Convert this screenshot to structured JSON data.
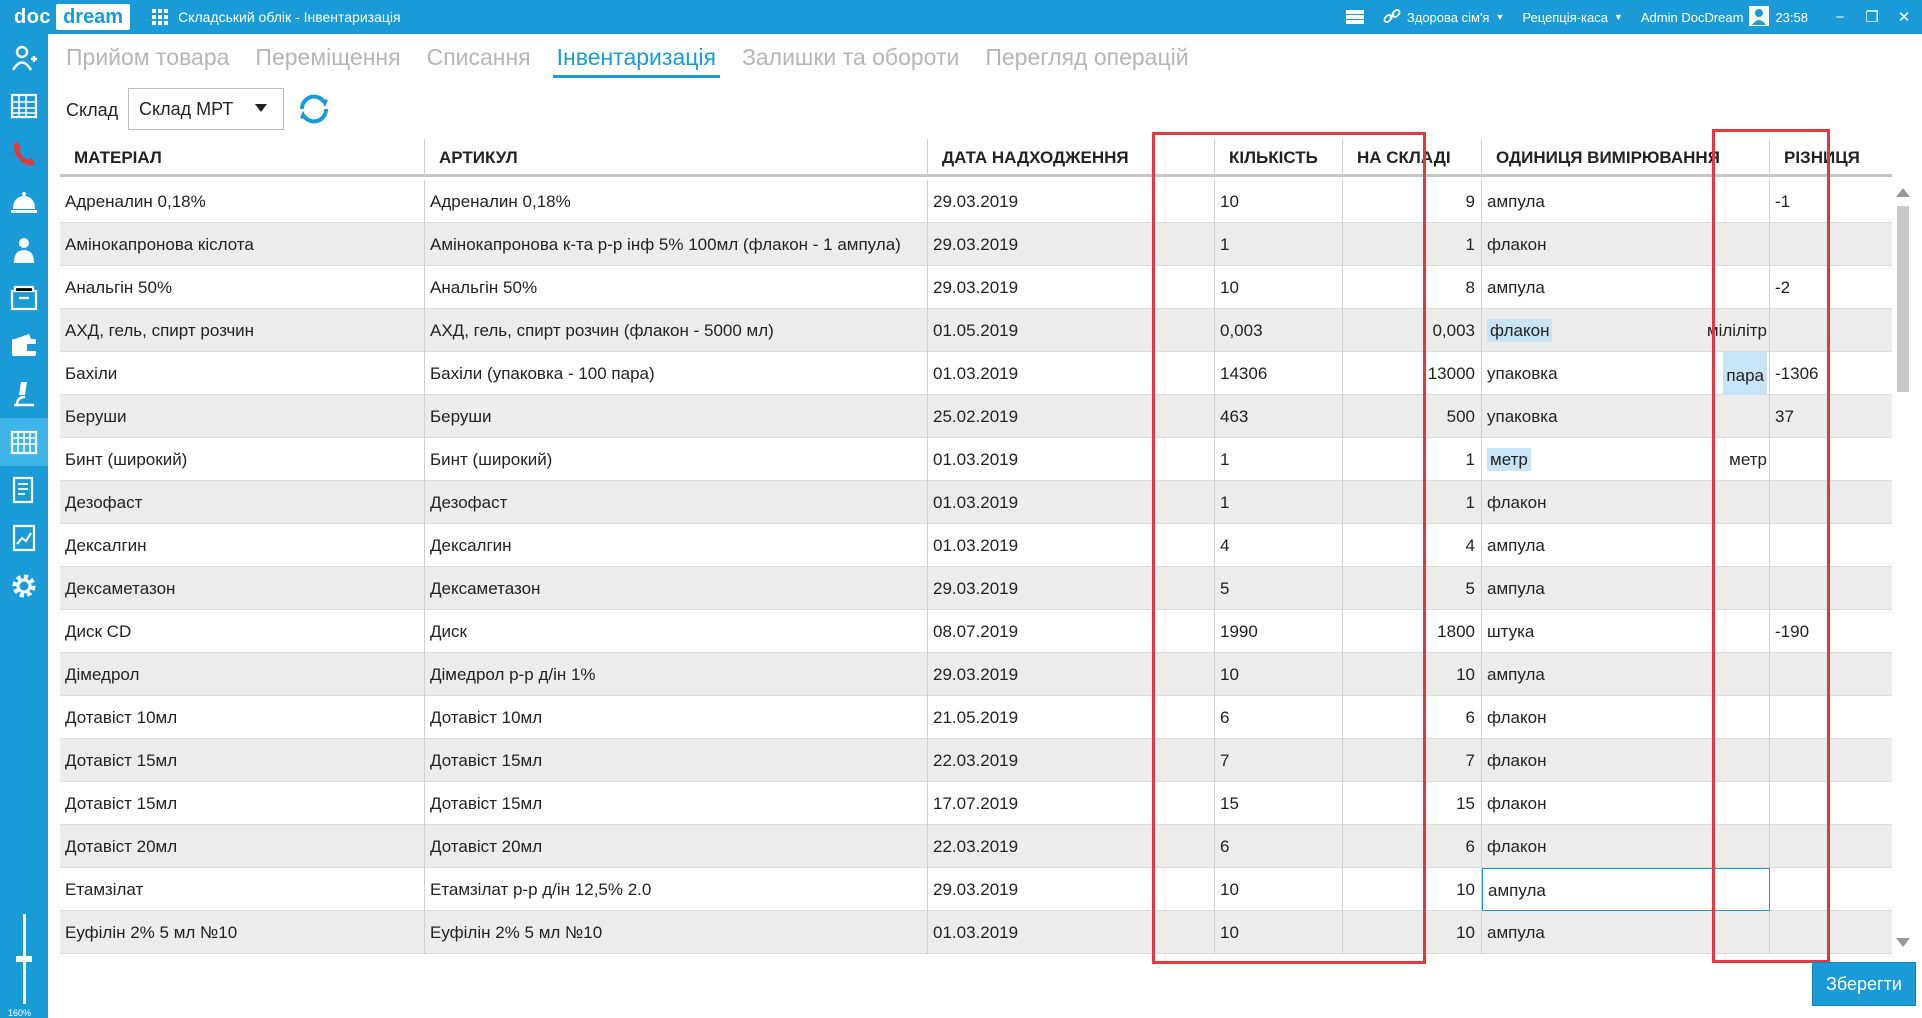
{
  "titlebar": {
    "logo_doc": "doc",
    "logo_dream": "dream",
    "app_title": "Складський облік - Інвентаризація",
    "clinic": "Здорова сім'я",
    "reception": "Рецепція-каса",
    "user": "Admin DocDream",
    "time": "23:58",
    "accent": "#1a9bd7"
  },
  "sidebar": {
    "icons": [
      "patient-icon",
      "schedule-icon",
      "phone-icon",
      "reception-bell-icon",
      "doctor-icon",
      "archive-icon",
      "wallet-icon",
      "lab-microscope-icon",
      "warehouse-icon",
      "report-icon",
      "analytics-icon",
      "settings-gear-icon"
    ],
    "active_index": 8,
    "zoom_label": "160%"
  },
  "tabs": [
    {
      "label": "Прийом товара"
    },
    {
      "label": "Переміщення"
    },
    {
      "label": "Списання"
    },
    {
      "label": "Інвентаризація",
      "active": true
    },
    {
      "label": "Залишки та обороти"
    },
    {
      "label": "Перегляд операцій"
    }
  ],
  "warehouse": {
    "label": "Склад",
    "value": "Склад МРТ"
  },
  "table": {
    "headers": {
      "material": "МАТЕРІАЛ",
      "article": "АРТИКУЛ",
      "date": "ДАТА НАДХОДЖЕННЯ",
      "qty": "КІЛЬКІСТЬ",
      "stock": "НА СКЛАДІ",
      "unit": "ОДИНИЦЯ ВИМІРЮВАННЯ",
      "diff": "РІЗНИЦЯ"
    },
    "rows": [
      {
        "material": "Адреналин 0,18%",
        "article": "Адреналин 0,18%",
        "date": "29.03.2019",
        "qty": "10",
        "stock": "9",
        "unit": "ампула",
        "unit2": "",
        "diff": "-1",
        "arrow": "down"
      },
      {
        "material": "Амінокапронова кіслота",
        "article": "Амінокапронова к-та р-р інф 5% 100мл (флакон - 1 ампула)",
        "date": "29.03.2019",
        "qty": "1",
        "stock": "1",
        "unit": "флакон",
        "unit2": "",
        "diff": "",
        "arrow": ""
      },
      {
        "material": "Анальгін 50%",
        "article": "Анальгін 50%",
        "date": "29.03.2019",
        "qty": "10",
        "stock": "8",
        "unit": "ампула",
        "unit2": "",
        "diff": "-2",
        "arrow": "down"
      },
      {
        "material": "АХД, гель, спирт розчин",
        "article": "АХД, гель, спирт розчин (флакон - 5000 мл)",
        "date": "01.05.2019",
        "qty": "0,003",
        "stock": "0,003",
        "unit": "флакон",
        "unit2": "мілілітр",
        "diff": "",
        "arrow": "",
        "hl": "unit"
      },
      {
        "material": "Бахіли",
        "article": "Бахіли (упаковка - 100 пара)",
        "date": "01.03.2019",
        "qty": "14306",
        "stock": "13000",
        "unit": "упаковка",
        "unit2": "пара",
        "diff": "-1306",
        "arrow": "down",
        "hl": "unit2"
      },
      {
        "material": "Беруши",
        "article": "Беруши",
        "date": "25.02.2019",
        "qty": "463",
        "stock": "500",
        "unit": "упаковка",
        "unit2": "",
        "diff": "37",
        "arrow": "up"
      },
      {
        "material": "Бинт (широкий)",
        "article": "Бинт (широкий)",
        "date": "01.03.2019",
        "qty": "1",
        "stock": "1",
        "unit": "метр",
        "unit2": "метр",
        "diff": "",
        "arrow": "",
        "hl": "unit"
      },
      {
        "material": "Дезофаст",
        "article": "Дезофаст",
        "date": "01.03.2019",
        "qty": "1",
        "stock": "1",
        "unit": "флакон",
        "unit2": "",
        "diff": "",
        "arrow": ""
      },
      {
        "material": "Дексалгин",
        "article": "Дексалгин",
        "date": "01.03.2019",
        "qty": "4",
        "stock": "4",
        "unit": "ампула",
        "unit2": "",
        "diff": "",
        "arrow": ""
      },
      {
        "material": "Дексаметазон",
        "article": "Дексаметазон",
        "date": "29.03.2019",
        "qty": "5",
        "stock": "5",
        "unit": "ампула",
        "unit2": "",
        "diff": "",
        "arrow": ""
      },
      {
        "material": "Диск CD",
        "article": "Диск",
        "date": "08.07.2019",
        "qty": "1990",
        "stock": "1800",
        "unit": "штука",
        "unit2": "",
        "diff": "-190",
        "arrow": "down"
      },
      {
        "material": "Дімедрол",
        "article": "Дімедрол р-р д/ін 1%",
        "date": "29.03.2019",
        "qty": "10",
        "stock": "10",
        "unit": "ампула",
        "unit2": "",
        "diff": "",
        "arrow": ""
      },
      {
        "material": "Дотавіст 10мл",
        "article": "Дотавіст 10мл",
        "date": "21.05.2019",
        "qty": "6",
        "stock": "6",
        "unit": "флакон",
        "unit2": "",
        "diff": "",
        "arrow": ""
      },
      {
        "material": "Дотавіст 15мл",
        "article": "Дотавіст 15мл",
        "date": "22.03.2019",
        "qty": "7",
        "stock": "7",
        "unit": "флакон",
        "unit2": "",
        "diff": "",
        "arrow": ""
      },
      {
        "material": "Дотавіст 15мл",
        "article": "Дотавіст 15мл",
        "date": "17.07.2019",
        "qty": "15",
        "stock": "15",
        "unit": "флакон",
        "unit2": "",
        "diff": "",
        "arrow": ""
      },
      {
        "material": "Дотавіст 20мл",
        "article": "Дотавіст 20мл",
        "date": "22.03.2019",
        "qty": "6",
        "stock": "6",
        "unit": "флакон",
        "unit2": "",
        "diff": "",
        "arrow": ""
      },
      {
        "material": "Етамзілат",
        "article": "Етамзілат р-р д/ін 12,5% 2.0",
        "date": "29.03.2019",
        "qty": "10",
        "stock": "10",
        "unit": "ампула",
        "unit2": "",
        "diff": "",
        "arrow": "",
        "selected": true
      },
      {
        "material": "Еуфілін 2% 5 мл №10",
        "article": "Еуфілін 2% 5 мл №10",
        "date": "01.03.2019",
        "qty": "10",
        "stock": "10",
        "unit": "ампула",
        "unit2": "",
        "diff": "",
        "arrow": ""
      }
    ]
  },
  "save_label": "Зберегти"
}
